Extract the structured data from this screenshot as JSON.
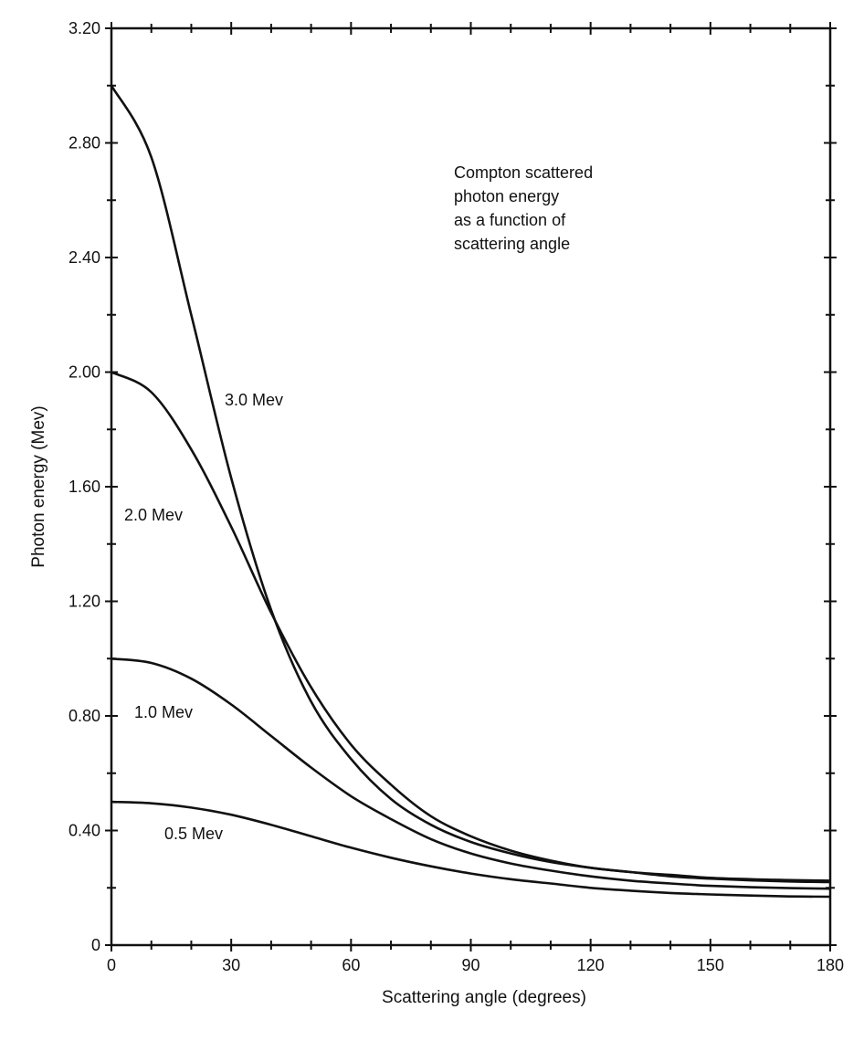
{
  "chart_data": {
    "type": "line",
    "title": "",
    "xlabel": "Scattering angle (degrees)",
    "ylabel": "Photon energy (Mev)",
    "xlim": [
      0,
      180
    ],
    "ylim": [
      0,
      3.2
    ],
    "x_ticks": [
      "0",
      "30",
      "60",
      "90",
      "120",
      "150",
      "180"
    ],
    "y_ticks": [
      "0",
      "0.40",
      "0.80",
      "1.20",
      "1.60",
      "2.00",
      "2.40",
      "2.80",
      "3.20"
    ],
    "grid": false,
    "annotation": [
      "Compton scattered",
      "photon energy",
      "as a function of",
      "scattering angle"
    ],
    "x": [
      0,
      10,
      20,
      30,
      40,
      50,
      60,
      70,
      80,
      90,
      100,
      110,
      120,
      130,
      140,
      150,
      160,
      170,
      180
    ],
    "series": [
      {
        "name": "3.0 Mev",
        "values": [
          3.0,
          2.75,
          2.2,
          1.63,
          1.17,
          0.85,
          0.65,
          0.51,
          0.42,
          0.36,
          0.32,
          0.29,
          0.27,
          0.255,
          0.245,
          0.235,
          0.23,
          0.227,
          0.225
        ]
      },
      {
        "name": "2.0 Mev",
        "values": [
          2.0,
          1.93,
          1.73,
          1.46,
          1.16,
          0.9,
          0.7,
          0.56,
          0.45,
          0.38,
          0.33,
          0.295,
          0.27,
          0.255,
          0.24,
          0.232,
          0.226,
          0.222,
          0.22
        ]
      },
      {
        "name": "1.0 Mev",
        "values": [
          1.0,
          0.985,
          0.93,
          0.84,
          0.73,
          0.62,
          0.52,
          0.44,
          0.37,
          0.32,
          0.285,
          0.26,
          0.24,
          0.225,
          0.215,
          0.207,
          0.202,
          0.199,
          0.197
        ]
      },
      {
        "name": "0.5 Mev",
        "values": [
          0.5,
          0.495,
          0.48,
          0.455,
          0.42,
          0.38,
          0.34,
          0.305,
          0.275,
          0.25,
          0.23,
          0.215,
          0.2,
          0.19,
          0.182,
          0.177,
          0.173,
          0.17,
          0.169
        ]
      }
    ]
  }
}
